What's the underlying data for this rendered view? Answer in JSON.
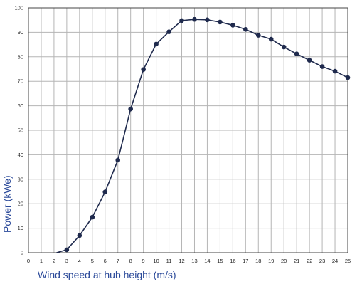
{
  "chart_data": {
    "type": "line",
    "title": "",
    "xlabel": "Wind speed at hub height (m/s)",
    "ylabel": "Power (kWe)",
    "xlim": [
      0,
      25
    ],
    "ylim": [
      0,
      100
    ],
    "x_ticks": [
      0,
      1,
      2,
      3,
      4,
      5,
      6,
      7,
      8,
      9,
      10,
      11,
      12,
      13,
      14,
      15,
      16,
      17,
      18,
      19,
      20,
      21,
      22,
      23,
      24,
      25
    ],
    "y_ticks": [
      0,
      10,
      20,
      30,
      40,
      50,
      60,
      70,
      80,
      90,
      100
    ],
    "grid": true,
    "legend": "none",
    "line_color": "#1f2a4d",
    "label_color": "#2b4a9a",
    "series": [
      {
        "x": [
          3,
          4,
          5,
          6,
          7,
          8,
          9,
          10,
          11,
          12,
          13,
          14,
          15,
          16,
          17,
          18,
          19,
          20,
          21,
          22,
          23,
          24,
          25
        ],
        "y": [
          1.2,
          7,
          14.5,
          24.8,
          37.8,
          58.7,
          74.8,
          85.2,
          90.2,
          94.8,
          95.3,
          95.1,
          94.2,
          92.9,
          91.2,
          88.8,
          87.2,
          84,
          81.2,
          78.6,
          76,
          74.1,
          71.5
        ]
      }
    ],
    "curve_start": {
      "x": 2.2,
      "y": 0
    }
  }
}
